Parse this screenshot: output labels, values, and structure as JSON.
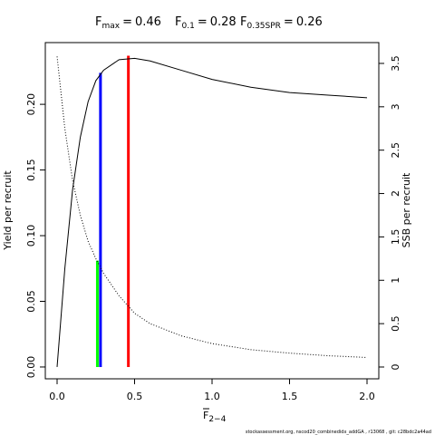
{
  "chart_data": {
    "type": "line",
    "title_items": [
      {
        "symbol": "F",
        "subscript": "max",
        "relation": "=",
        "value": 0.46
      },
      {
        "symbol": "F",
        "subscript": "0.1",
        "relation": "=",
        "value": 0.28
      },
      {
        "symbol": "F",
        "subscript": "0.35SPR",
        "relation": "=",
        "value": 0.26
      }
    ],
    "x_label": {
      "symbol": "F",
      "subscript": "2−4"
    },
    "y_label": "Yield per recruit",
    "y2_label": "SSB per recruit",
    "footer": "stockassessment.org, nscod20_combinedidx_addGA , r13068 , git: c28bdc2a44ad",
    "x": [
      0,
      0.05,
      0.1,
      0.15,
      0.2,
      0.25,
      0.3,
      0.4,
      0.5,
      0.6,
      0.8,
      1.0,
      1.25,
      1.5,
      1.75,
      2.0
    ],
    "series": [
      {
        "name": "Yield per recruit",
        "color": "#000000",
        "dash": "none",
        "values": [
          0,
          0.075,
          0.135,
          0.175,
          0.202,
          0.218,
          0.226,
          0.234,
          0.235,
          0.233,
          0.226,
          0.219,
          0.213,
          0.209,
          0.207,
          0.205
        ]
      },
      {
        "name": "SSB per recruit",
        "color": "#000000",
        "dash": "1,2",
        "axis": "y2",
        "values": [
          3.58,
          2.75,
          2.15,
          1.75,
          1.45,
          1.25,
          1.08,
          0.82,
          0.62,
          0.5,
          0.36,
          0.27,
          0.2,
          0.16,
          0.13,
          0.11
        ]
      }
    ],
    "reference_lines": [
      {
        "x": 0.46,
        "top": 0.237,
        "color": "#ff0000"
      },
      {
        "x": 0.28,
        "top": 0.224,
        "color": "#0000ff"
      },
      {
        "x": 0.26,
        "top": 0.081,
        "color": "#00ff00"
      }
    ],
    "xlim": [
      -0.076,
      2.076
    ],
    "ylim": [
      -0.009,
      0.247
    ],
    "y2lim": [
      -0.136,
      3.74
    ],
    "xticks": [
      {
        "value": 0,
        "label": "0.0"
      },
      0.5,
      {
        "value": 1,
        "label": "1.0"
      },
      1.5,
      {
        "value": 2,
        "label": "2.0"
      }
    ],
    "yticks": [
      {
        "value": 0,
        "label": "0.00"
      },
      0.05,
      {
        "value": 0.1,
        "label": "0.10"
      },
      0.15,
      {
        "value": 0.2,
        "label": "0.20"
      }
    ],
    "y2ticks": [
      0,
      0.5,
      1,
      1.5,
      2,
      2.5,
      3,
      3.5
    ]
  }
}
